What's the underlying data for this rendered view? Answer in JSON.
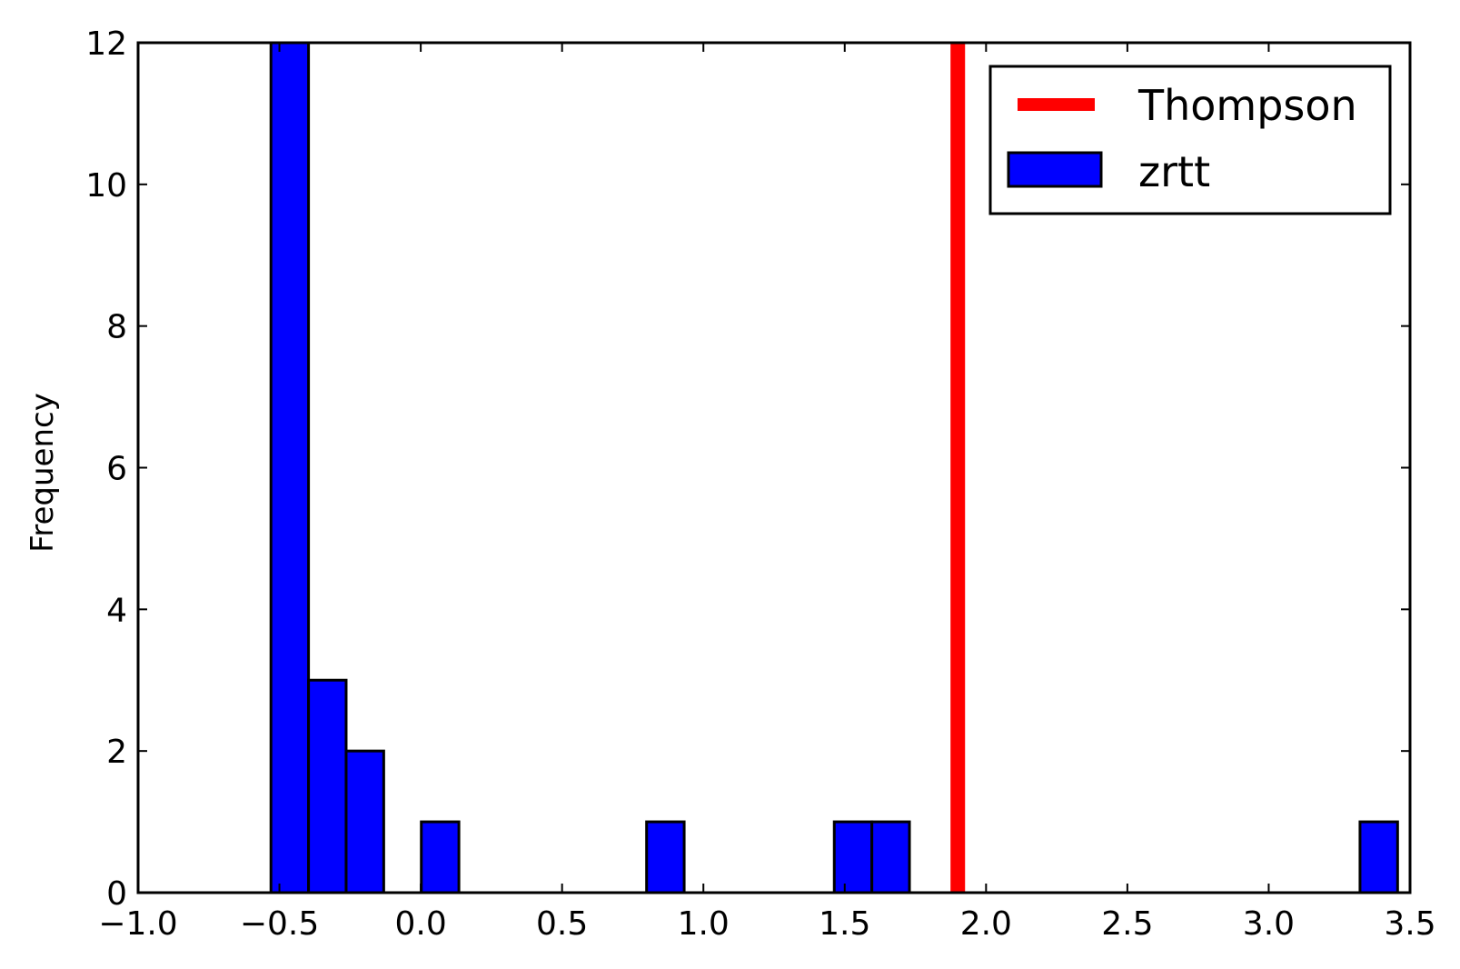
{
  "chart_data": {
    "type": "bar",
    "subtype": "histogram",
    "title": "",
    "xlabel": "",
    "ylabel": "Frequency",
    "xlim": [
      -1.0,
      3.5
    ],
    "ylim": [
      0,
      12
    ],
    "x_ticks": [
      -1.0,
      -0.5,
      0.0,
      0.5,
      1.0,
      1.5,
      2.0,
      2.5,
      3.0,
      3.5
    ],
    "x_tick_labels": [
      "−1.0",
      "−0.5",
      "0.0",
      "0.5",
      "1.0",
      "1.5",
      "2.0",
      "2.5",
      "3.0",
      "3.5"
    ],
    "y_ticks": [
      0,
      2,
      4,
      6,
      8,
      10,
      12
    ],
    "y_tick_labels": [
      "0",
      "2",
      "4",
      "6",
      "8",
      "10",
      "12"
    ],
    "grid": false,
    "legend_position": "top-right",
    "series": [
      {
        "name": "zrtt",
        "kind": "histogram",
        "color": "#0000ff",
        "edge_color": "#000000",
        "bins": [
          {
            "x0": -0.53,
            "x1": -0.397,
            "count": 12
          },
          {
            "x0": -0.397,
            "x1": -0.264,
            "count": 3
          },
          {
            "x0": -0.264,
            "x1": -0.131,
            "count": 2
          },
          {
            "x0": 0.002,
            "x1": 0.135,
            "count": 1
          },
          {
            "x0": 0.799,
            "x1": 0.932,
            "count": 1
          },
          {
            "x0": 1.463,
            "x1": 1.596,
            "count": 1
          },
          {
            "x0": 1.596,
            "x1": 1.729,
            "count": 1
          },
          {
            "x0": 3.323,
            "x1": 3.456,
            "count": 1
          }
        ]
      },
      {
        "name": "Thompson",
        "kind": "vline",
        "color": "#ff0000",
        "x": 1.9
      }
    ]
  }
}
